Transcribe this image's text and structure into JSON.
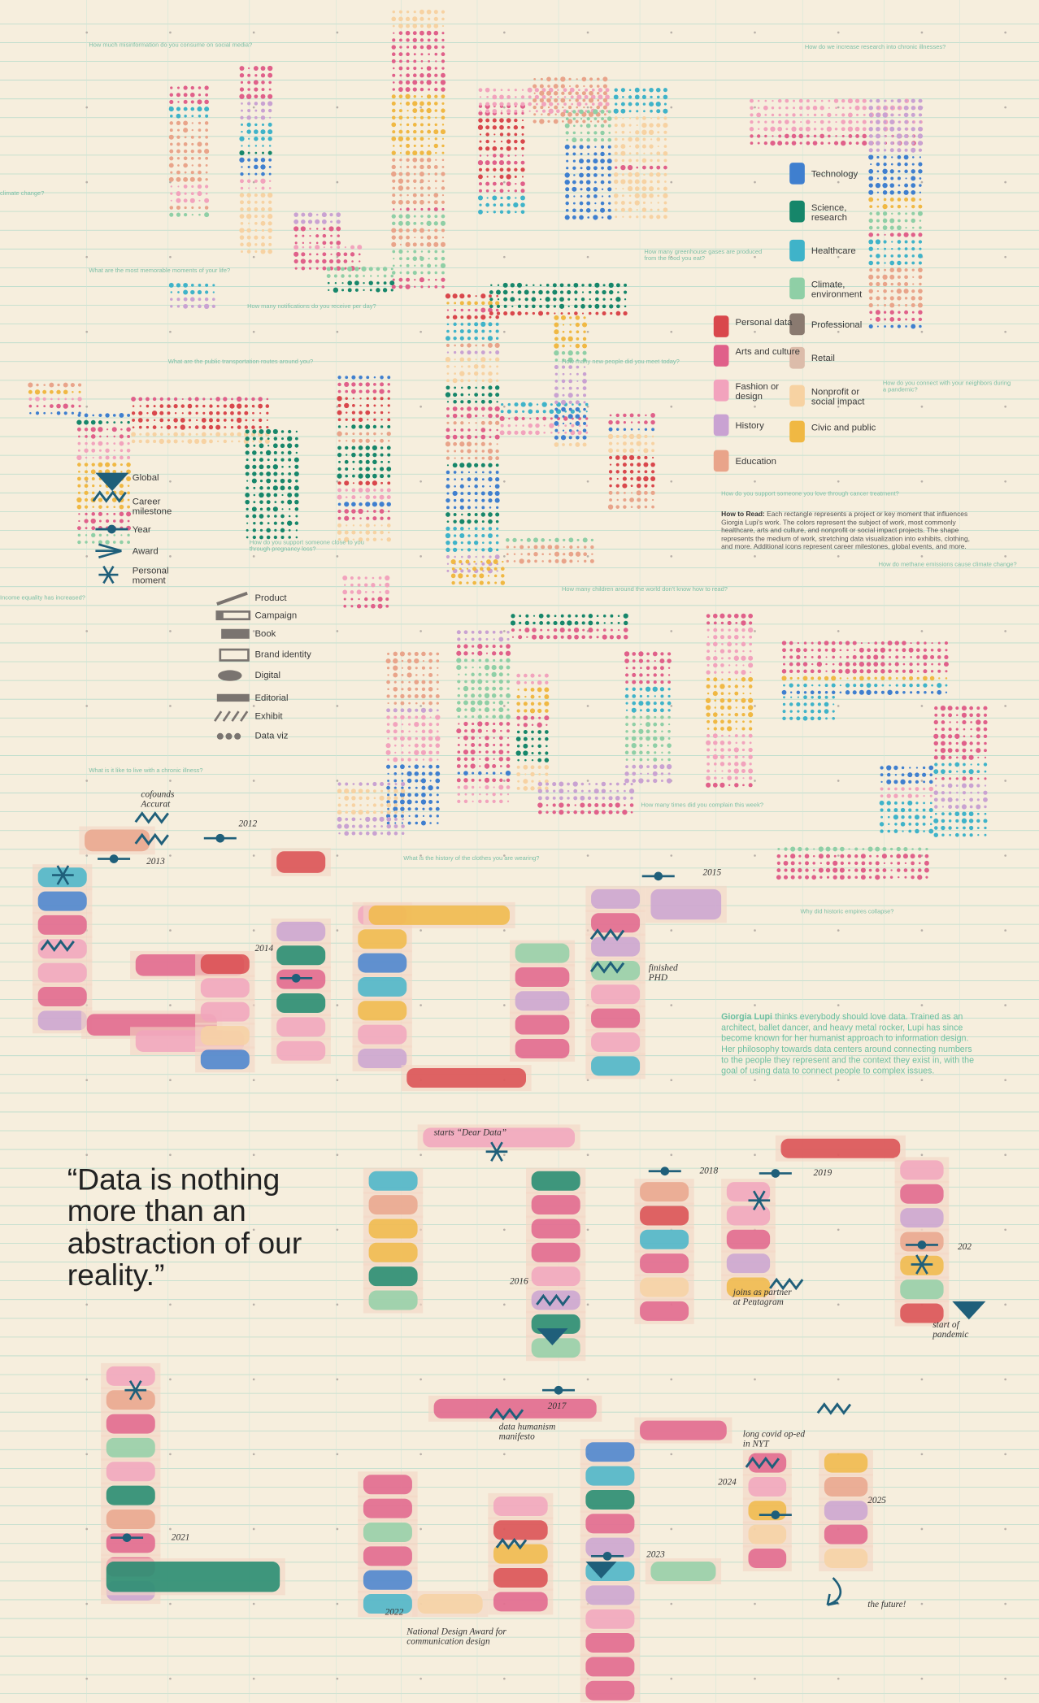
{
  "questions": [
    "How much misinformation do you consume on social media?",
    "How do we increase research into chronic illnesses?",
    "climate change?",
    "What are the most memorable moments of your life?",
    "How many greenhouse gases are produced from the food you eat?",
    "How many notifications do you receive per day?",
    "What are the public transportation routes around you?",
    "How many new people did you meet today?",
    "How do you connect with your neighbors during a pandemic?",
    "How do you support someone you love through cancer treatment?",
    "How do you support someone close to you through pregnancy loss?",
    "How do methane emissions cause climate change?",
    "Income equality has increased?",
    "How many children around the world don't know how to read?",
    "What is it like to live with a chronic illness?",
    "How many times did you complain this week?",
    "What is the history of the clothes you are wearing?",
    "Why did historic empires collapse?"
  ],
  "color_legend": [
    {
      "label": "Technology",
      "color": "#3f7fcf"
    },
    {
      "label": "Science, research",
      "color": "#16866a"
    },
    {
      "label": "Healthcare",
      "color": "#3fb3c9"
    },
    {
      "label": "Climate, environment",
      "color": "#8fcfa6"
    },
    {
      "label": "Personal data",
      "color": "#d9474c"
    },
    {
      "label": "Arts and culture",
      "color": "#e0608a"
    },
    {
      "label": "Fashion or design",
      "color": "#f2a3bd"
    },
    {
      "label": "History",
      "color": "#c9a2d2"
    },
    {
      "label": "Education",
      "color": "#e9a48a"
    },
    {
      "label": "Professional",
      "color": "#8a7a70"
    },
    {
      "label": "Retail",
      "color": "#dcbcaa"
    },
    {
      "label": "Nonprofit or social impact",
      "color": "#f7d2a2"
    },
    {
      "label": "Civic and public",
      "color": "#f0b843"
    }
  ],
  "icon_legend": [
    "Global",
    "Career milestone",
    "Year",
    "Award",
    "Personal moment"
  ],
  "medium_legend": [
    "Product",
    "Campaign",
    "Book",
    "Brand identity",
    "Digital",
    "Editorial",
    "Exhibit",
    "Data viz"
  ],
  "how_to_read": {
    "label": "How to Read:",
    "text": "Each rectangle represents a project or key moment that influences Giorgia Lupi's work. The colors represent the subject of work, most commonly healthcare, arts and culture, and nonprofit or social impact projects. The shape represents the medium of work, stretching data visualization into exhibits, clothing, and more. Additional icons represent career milestones, global events, and more."
  },
  "bio": {
    "name": "Giorgia Lupi",
    "text": "thinks everybody should love data. Trained as an architect, ballet dancer, and heavy metal rocker, Lupi has since become known for her humanist approach to information design. Her philosophy towards data centers around connecting numbers to the people they represent and the context they exist in, with the goal of using data to connect people to complex issues."
  },
  "quote": "“Data is nothing more than an abstraction of our reality.”",
  "annotations": [
    "cofounds Accurat",
    "2012",
    "2013",
    "2014",
    "2015",
    "finished PHD",
    "starts “Dear Data”",
    "2016",
    "2017",
    "data humanism manifesto",
    "2018",
    "2019",
    "joins as partner at Pentagram",
    "202",
    "start of pandemic",
    "2021",
    "2022",
    "National Design Award for communication design",
    "2023",
    "2024",
    "long covid op-ed in NYT",
    "2025",
    "the future!"
  ]
}
